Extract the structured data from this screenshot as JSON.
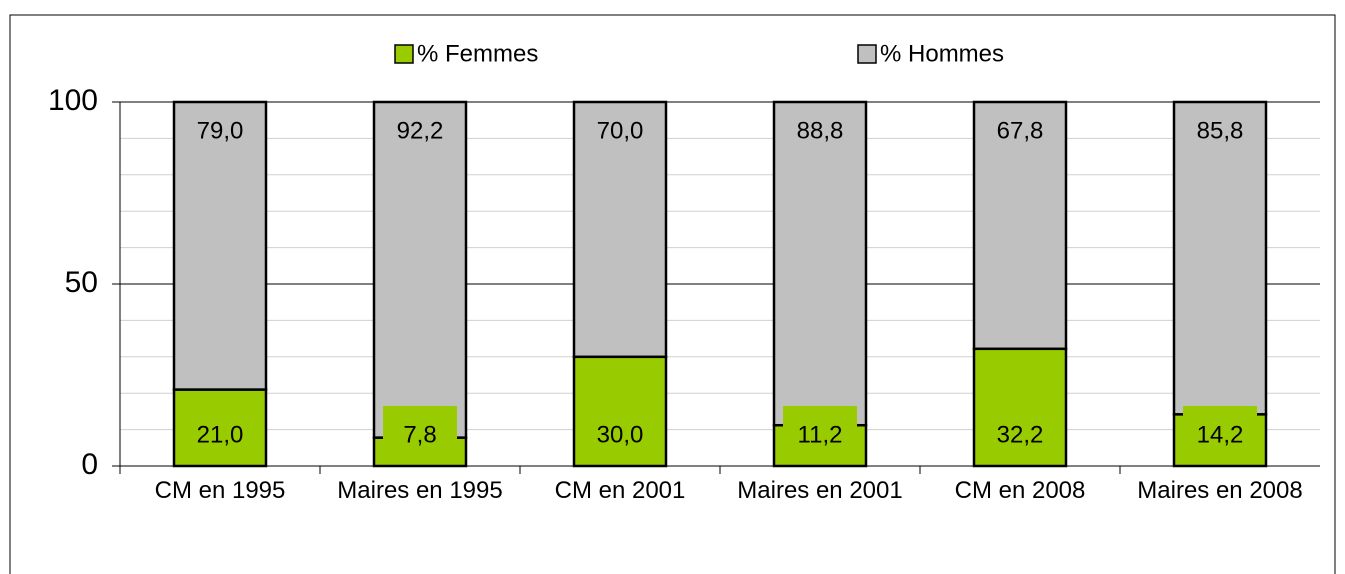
{
  "chart_data": {
    "type": "stacked_bar",
    "categories": [
      "CM en 1995",
      "Maires en 1995",
      "CM en 2001",
      "Maires en 2001",
      "CM en 2008",
      "Maires en 2008"
    ],
    "series": [
      {
        "name": "% Femmes",
        "color": "#99cc00",
        "values": [
          21.0,
          7.8,
          30.0,
          11.2,
          32.2,
          14.2
        ],
        "value_labels": [
          "21,0",
          "7,8",
          "30,0",
          "11,2",
          "32,2",
          "14,2"
        ]
      },
      {
        "name": "% Hommes",
        "color": "#c0c0c0",
        "values": [
          79.0,
          92.2,
          70.0,
          88.8,
          67.8,
          85.8
        ],
        "value_labels": [
          "79,0",
          "92,2",
          "70,0",
          "88,8",
          "67,8",
          "85,8"
        ]
      }
    ],
    "ylim": [
      0,
      100
    ],
    "yticks": [
      0,
      50,
      100
    ],
    "minor_yticks": [
      10,
      20,
      30,
      40,
      60,
      70,
      80,
      90
    ],
    "grid": true,
    "legend": "top"
  }
}
